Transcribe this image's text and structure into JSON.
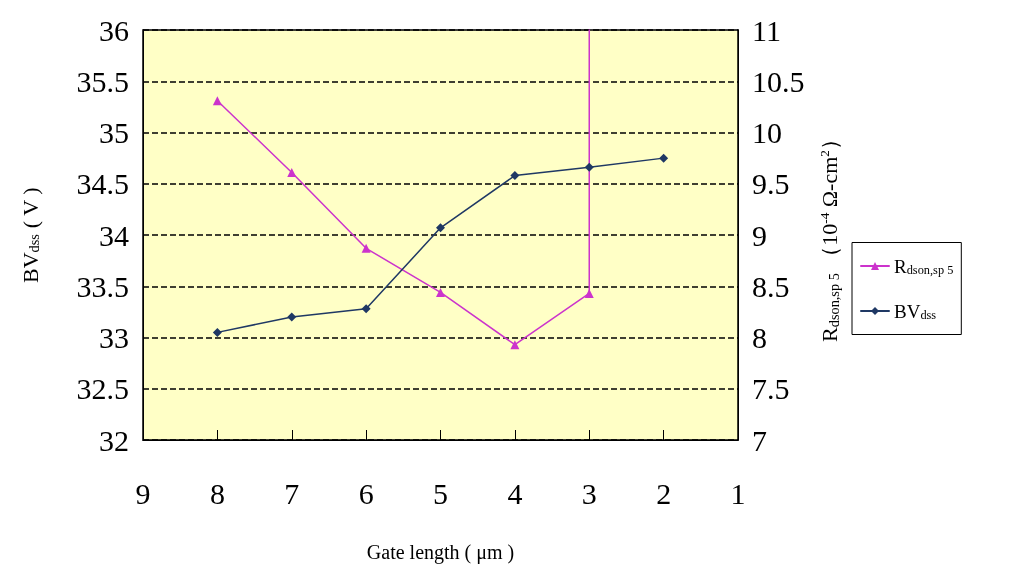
{
  "chart_data": {
    "type": "line",
    "xlabel": "Gate length ( μm )",
    "ylabel": "BV$_{dss}$ ( V )",
    "y2label": "R$_{dson,sp 5}$ （10$^{-4}$ Ω-cm$^{2}$）",
    "x": [
      8,
      7,
      6,
      5,
      4,
      3,
      2
    ],
    "series": [
      {
        "name": "R$_{dson,sp 5}$",
        "color": "#cc33cc",
        "marker": "triangle",
        "axis": "y2",
        "x": [
          8,
          7,
          6,
          5,
          4,
          3,
          3
        ],
        "values": [
          10.31,
          9.61,
          8.87,
          8.44,
          7.93,
          8.43,
          11
        ]
      },
      {
        "name": "BV$_{dss}$",
        "color": "#1f3864",
        "marker": "diamond",
        "values": [
          33.05,
          33.2,
          33.28,
          34.07,
          34.58,
          34.66,
          34.75
        ]
      }
    ],
    "xlim": [
      9,
      1
    ],
    "xticks": [
      9,
      8,
      7,
      6,
      5,
      4,
      3,
      2,
      1
    ],
    "ylim": [
      32,
      36
    ],
    "yticks": [
      32,
      32.5,
      33,
      33.5,
      34,
      34.5,
      35,
      35.5,
      36
    ],
    "y2lim": [
      7,
      11
    ],
    "y2ticks": [
      7,
      7.5,
      8,
      8.5,
      9,
      9.5,
      10,
      10.5,
      11
    ],
    "grid": "y",
    "legend": "right",
    "line_style": "solid"
  }
}
